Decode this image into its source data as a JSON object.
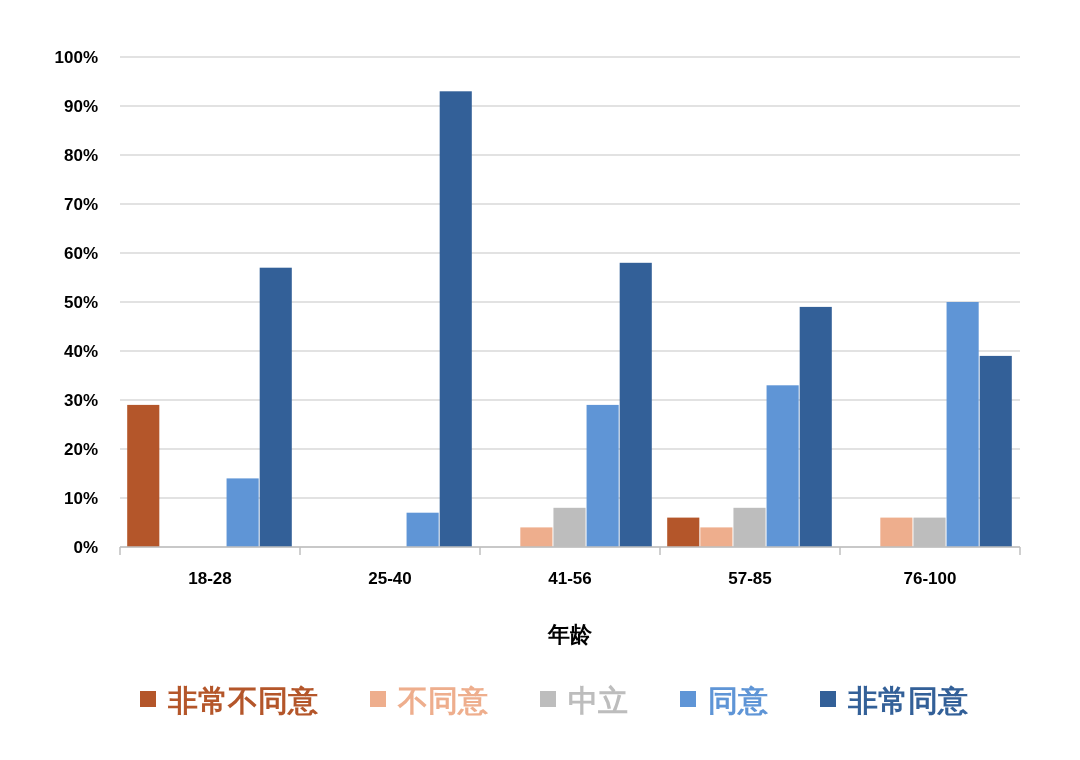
{
  "chart_data": {
    "type": "bar",
    "xlabel": "年龄",
    "categories": [
      "18-28",
      "25-40",
      "41-56",
      "57-85",
      "76-100"
    ],
    "series": [
      {
        "name": "非常不同意",
        "color": "#b4562a",
        "values": [
          29,
          0,
          0,
          6,
          0
        ]
      },
      {
        "name": "不同意",
        "color": "#eeae8d",
        "values": [
          0,
          0,
          4,
          4,
          6
        ]
      },
      {
        "name": "中立",
        "color": "#bdbdbd",
        "values": [
          0,
          0,
          8,
          8,
          6
        ]
      },
      {
        "name": "同意",
        "color": "#5f95d6",
        "values": [
          14,
          7,
          29,
          33,
          50
        ]
      },
      {
        "name": "非常同意",
        "color": "#336098",
        "values": [
          57,
          93,
          58,
          49,
          39
        ]
      }
    ],
    "ylim": [
      0,
      100
    ],
    "yticks": [
      {
        "value": 0,
        "label": "0%"
      },
      {
        "value": 10,
        "label": "10%"
      },
      {
        "value": 20,
        "label": "20%"
      },
      {
        "value": 30,
        "label": "30%"
      },
      {
        "value": 40,
        "label": "40%"
      },
      {
        "value": 50,
        "label": "50%"
      },
      {
        "value": 60,
        "label": "60%"
      },
      {
        "value": 70,
        "label": "70%"
      },
      {
        "value": 80,
        "label": "80%"
      },
      {
        "value": 90,
        "label": "90%"
      },
      {
        "value": 100,
        "label": "100%"
      }
    ],
    "grid": "y",
    "legend": "bottom"
  }
}
